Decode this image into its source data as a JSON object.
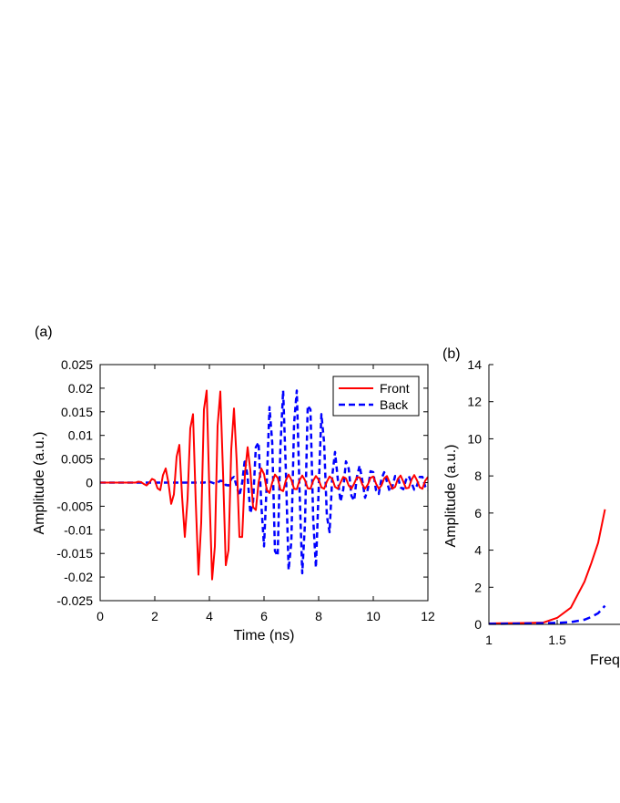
{
  "panels": {
    "a": {
      "label": "(a)"
    },
    "b": {
      "label": "(b)"
    }
  },
  "colors": {
    "front": "#ff0000",
    "back": "#0000ff",
    "axis": "#000000"
  },
  "chart_data": [
    {
      "type": "line",
      "panel": "(a)",
      "xlabel": "Time (ns)",
      "ylabel": "Amplitude (a.u.)",
      "xlim": [
        0,
        12
      ],
      "ylim": [
        -0.025,
        0.025
      ],
      "xticks": [
        0,
        2,
        4,
        6,
        8,
        10,
        12
      ],
      "xtick_labels": [
        "0",
        "2",
        "4",
        "6",
        "8",
        "10",
        "12"
      ],
      "yticks": [
        -0.025,
        -0.02,
        -0.015,
        -0.01,
        -0.005,
        0,
        0.005,
        0.01,
        0.015,
        0.02,
        0.025
      ],
      "ytick_labels": [
        "-0.025",
        "-0.02",
        "-0.015",
        "-0.01",
        "-0.005",
        "0",
        "0.005",
        "0.01",
        "0.015",
        "0.02",
        "0.025"
      ],
      "legend": {
        "position": "top-right",
        "entries": [
          "Front",
          "Back"
        ]
      },
      "series": [
        {
          "name": "Front",
          "style": "solid",
          "color": "#ff0000",
          "x": [
            0.0,
            0.1,
            0.2,
            0.3,
            0.4,
            0.5,
            0.6,
            0.7,
            0.8,
            0.9,
            1.0,
            1.1,
            1.2,
            1.3,
            1.4,
            1.5,
            1.6,
            1.7,
            1.8,
            1.9,
            2.0,
            2.1,
            2.2,
            2.3,
            2.4,
            2.5,
            2.6,
            2.7,
            2.8,
            2.9,
            3.0,
            3.1,
            3.2,
            3.3,
            3.4,
            3.5,
            3.6,
            3.7,
            3.8,
            3.9,
            4.0,
            4.1,
            4.2,
            4.3,
            4.4,
            4.5,
            4.6,
            4.7,
            4.8,
            4.9,
            5.0,
            5.1,
            5.2,
            5.3,
            5.4,
            5.5,
            5.6,
            5.7,
            5.8,
            5.9,
            6.0,
            6.1,
            6.2,
            6.3,
            6.4,
            6.5,
            6.6,
            6.7,
            6.8,
            6.9,
            7.0,
            7.1,
            7.2,
            7.3,
            7.4,
            7.5,
            7.6,
            7.7,
            7.8,
            7.9,
            8.0,
            8.1,
            8.2,
            8.3,
            8.4,
            8.5,
            8.6,
            8.7,
            8.8,
            8.9,
            9.0,
            9.1,
            9.2,
            9.3,
            9.4,
            9.5,
            9.6,
            9.7,
            9.8,
            9.9,
            10.0,
            10.1,
            10.2,
            10.3,
            10.4,
            10.5,
            10.6,
            10.7,
            10.8,
            10.9,
            11.0,
            11.1,
            11.2,
            11.3,
            11.4,
            11.5,
            11.6,
            11.7,
            11.8,
            11.9,
            12.0
          ],
          "y": [
            0.0,
            0.0,
            0.0,
            0.0,
            0.0,
            0.0,
            0.0,
            0.0,
            0.0,
            0.0,
            0.0,
            0.0,
            0.0,
            0.0,
            0.0002,
            0.0001,
            -0.0003,
            -0.0006,
            0.0,
            0.0008,
            0.0005,
            -0.0012,
            -0.0016,
            0.0016,
            0.003,
            0.0,
            -0.0045,
            -0.0025,
            0.0055,
            0.008,
            -0.003,
            -0.0115,
            -0.0035,
            0.0115,
            0.0145,
            -0.004,
            -0.0195,
            -0.0085,
            0.0155,
            0.0195,
            -0.002,
            -0.0205,
            -0.0135,
            0.012,
            0.0193,
            0.002,
            -0.0175,
            -0.0143,
            0.007,
            0.0157,
            0.0045,
            -0.0115,
            -0.0115,
            0.0018,
            0.0075,
            0.0025,
            -0.0052,
            -0.0058,
            0.0,
            0.003,
            0.0018,
            -0.0015,
            -0.0022,
            0.0,
            0.0017,
            0.001,
            -0.0015,
            -0.0018,
            0.0005,
            0.0017,
            0.0006,
            -0.0013,
            -0.0014,
            0.0005,
            0.0015,
            0.0005,
            -0.0012,
            -0.0013,
            0.0004,
            0.0014,
            0.0006,
            -0.001,
            -0.0013,
            0.0002,
            0.0013,
            0.0008,
            -0.0009,
            -0.0013,
            0.0,
            0.0012,
            0.0009,
            -0.0006,
            -0.0013,
            -0.0002,
            0.0011,
            0.0011,
            -0.0004,
            -0.0013,
            -0.0004,
            0.001,
            0.0013,
            -0.0002,
            -0.0013,
            -0.0006,
            0.0009,
            0.0014,
            0.0,
            -0.0013,
            -0.0009,
            0.0008,
            0.0015,
            0.0002,
            -0.0012,
            -0.0011,
            0.0006,
            0.0016,
            0.0005,
            -0.001,
            -0.0013,
            0.0004,
            0.0012
          ]
        },
        {
          "name": "Back",
          "style": "dashed",
          "color": "#0000ff",
          "x": [
            0.0,
            0.1,
            0.2,
            0.3,
            0.4,
            0.5,
            0.6,
            0.7,
            0.8,
            0.9,
            1.0,
            1.1,
            1.2,
            1.3,
            1.4,
            1.5,
            1.6,
            1.7,
            1.8,
            1.9,
            2.0,
            2.1,
            2.2,
            2.3,
            2.4,
            2.5,
            2.6,
            2.7,
            2.8,
            2.9,
            3.0,
            3.1,
            3.2,
            3.3,
            3.4,
            3.5,
            3.6,
            3.7,
            3.8,
            3.9,
            4.0,
            4.1,
            4.2,
            4.3,
            4.4,
            4.5,
            4.6,
            4.7,
            4.8,
            4.9,
            5.0,
            5.1,
            5.2,
            5.3,
            5.4,
            5.5,
            5.6,
            5.7,
            5.8,
            5.9,
            6.0,
            6.1,
            6.2,
            6.3,
            6.4,
            6.5,
            6.6,
            6.7,
            6.8,
            6.9,
            7.0,
            7.1,
            7.2,
            7.3,
            7.4,
            7.5,
            7.6,
            7.7,
            7.8,
            7.9,
            8.0,
            8.1,
            8.2,
            8.3,
            8.4,
            8.5,
            8.6,
            8.7,
            8.8,
            8.9,
            9.0,
            9.1,
            9.2,
            9.3,
            9.4,
            9.5,
            9.6,
            9.7,
            9.8,
            9.9,
            10.0,
            10.1,
            10.2,
            10.3,
            10.4,
            10.5,
            10.6,
            10.7,
            10.8,
            10.9,
            11.0,
            11.1,
            11.2,
            11.3,
            11.4,
            11.5,
            11.6,
            11.7,
            11.8,
            11.9,
            12.0
          ],
          "y": [
            0.0,
            0.0,
            0.0,
            0.0,
            0.0,
            0.0,
            0.0,
            0.0,
            0.0,
            0.0,
            0.0,
            0.0,
            0.0,
            0.0,
            0.0,
            0.0,
            0.0,
            0.0,
            0.0,
            0.0,
            0.0,
            0.0,
            0.0,
            0.0,
            0.0,
            0.0,
            0.0,
            0.0,
            0.0,
            0.0,
            0.0,
            0.0,
            0.0,
            0.0,
            0.0,
            0.0,
            0.0,
            0.0,
            0.0,
            0.0001,
            0.0002,
            0.0,
            -0.0002,
            0.0,
            0.0004,
            0.0003,
            -0.0005,
            -0.0006,
            0.0008,
            0.0012,
            -0.0008,
            -0.0028,
            0.0,
            0.005,
            0.0012,
            -0.0065,
            -0.004,
            0.0075,
            0.0085,
            -0.0045,
            -0.0135,
            0.0,
            0.016,
            0.0085,
            -0.0145,
            -0.0155,
            0.0075,
            0.0195,
            0.0025,
            -0.0185,
            -0.0125,
            0.0125,
            0.0195,
            -0.0015,
            -0.0192,
            -0.0085,
            0.0163,
            0.0155,
            -0.0075,
            -0.018,
            -0.0015,
            0.0145,
            0.0085,
            -0.007,
            -0.0105,
            0.0015,
            0.0065,
            0.0008,
            -0.004,
            -0.0015,
            0.0045,
            0.003,
            -0.0028,
            -0.0038,
            0.0012,
            0.0036,
            0.0004,
            -0.0032,
            -0.0014,
            0.0024,
            0.0022,
            -0.0016,
            -0.0024,
            0.0008,
            0.0022,
            0.0002,
            -0.0019,
            -0.0008,
            0.0014,
            0.0012,
            -0.001,
            -0.0014,
            0.0006,
            0.0014,
            0.0,
            -0.0015,
            -0.0006,
            0.0012,
            0.0012,
            -0.0008,
            -0.0016
          ]
        }
      ]
    },
    {
      "type": "line",
      "panel": "(b)",
      "xlabel": "Freq",
      "ylabel": "Amplitude (a.u.)",
      "xlim": [
        1,
        1.85
      ],
      "ylim": [
        0,
        14
      ],
      "xticks": [
        1,
        1.5
      ],
      "xtick_labels": [
        "1",
        "1.5"
      ],
      "yticks": [
        0,
        2,
        4,
        6,
        8,
        10,
        12,
        14
      ],
      "ytick_labels": [
        "0",
        "2",
        "4",
        "6",
        "8",
        "10",
        "12",
        "14"
      ],
      "series": [
        {
          "style": "solid",
          "color": "#ff0000",
          "x": [
            1.0,
            1.1,
            1.2,
            1.3,
            1.4,
            1.5,
            1.6,
            1.7,
            1.75,
            1.8,
            1.85
          ],
          "y": [
            0.05,
            0.06,
            0.07,
            0.08,
            0.1,
            0.35,
            0.9,
            2.3,
            3.3,
            4.4,
            6.2
          ]
        },
        {
          "style": "dashed",
          "color": "#0000ff",
          "x": [
            1.0,
            1.1,
            1.2,
            1.3,
            1.4,
            1.5,
            1.6,
            1.7,
            1.75,
            1.8,
            1.85
          ],
          "y": [
            0.03,
            0.03,
            0.04,
            0.05,
            0.06,
            0.08,
            0.12,
            0.25,
            0.4,
            0.6,
            1.0
          ]
        }
      ]
    }
  ]
}
